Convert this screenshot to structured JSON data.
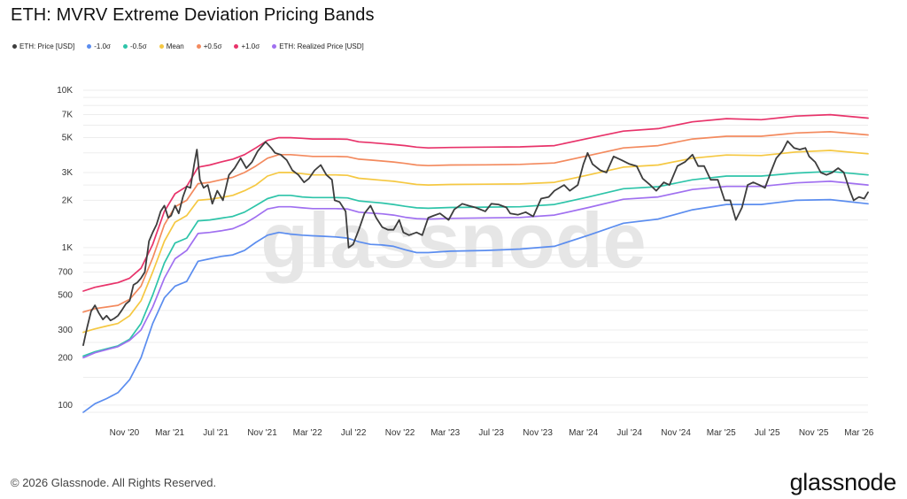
{
  "title": "ETH: MVRV Extreme Deviation Pricing Bands",
  "footer": "© 2026 Glassnode. All Rights Reserved.",
  "brand": "glassnode",
  "watermark": "glassnode",
  "chart_data": {
    "type": "line",
    "title": "ETH: MVRV Extreme Deviation Pricing Bands",
    "y_scale": "log",
    "ylim": [
      90,
      10000
    ],
    "y_ticks": [
      100,
      200,
      300,
      500,
      700,
      1000,
      2000,
      3000,
      5000,
      7000,
      10000
    ],
    "y_tick_labels": [
      "100",
      "200",
      "300",
      "500",
      "700",
      "1K",
      "2K",
      "3K",
      "5K",
      "7K",
      "10K"
    ],
    "xlim": [
      "2020-07-15",
      "2026-03-25"
    ],
    "x_ticks": [
      "2020-11-01",
      "2021-03-01",
      "2021-07-01",
      "2021-11-01",
      "2022-03-01",
      "2022-07-01",
      "2022-11-01",
      "2023-03-01",
      "2023-07-01",
      "2023-11-01",
      "2024-03-01",
      "2024-07-01",
      "2024-11-01",
      "2025-03-01",
      "2025-07-01",
      "2025-11-01",
      "2026-03-01"
    ],
    "x_tick_labels": [
      "Nov '20",
      "Mar '21",
      "Jul '21",
      "Nov '21",
      "Mar '22",
      "Jul '22",
      "Nov '22",
      "Mar '23",
      "Jul '23",
      "Nov '23",
      "Mar '24",
      "Jul '24",
      "Nov '24",
      "Mar '25",
      "Jul '25",
      "Nov '25",
      "Mar '26"
    ],
    "grid": true,
    "legend_position": "top-left",
    "series": [
      {
        "name": "ETH: Price [USD]",
        "color": "#3d3d3d",
        "x": [
          "2020-07-15",
          "2020-07-25",
          "2020-08-05",
          "2020-08-15",
          "2020-08-25",
          "2020-09-05",
          "2020-09-15",
          "2020-09-25",
          "2020-10-05",
          "2020-10-15",
          "2020-10-25",
          "2020-11-05",
          "2020-11-15",
          "2020-11-25",
          "2020-12-05",
          "2020-12-15",
          "2020-12-25",
          "2021-01-05",
          "2021-01-15",
          "2021-01-25",
          "2021-02-05",
          "2021-02-15",
          "2021-02-25",
          "2021-03-05",
          "2021-03-15",
          "2021-03-25",
          "2021-04-05",
          "2021-04-15",
          "2021-04-25",
          "2021-05-05",
          "2021-05-12",
          "2021-05-20",
          "2021-05-30",
          "2021-06-10",
          "2021-06-22",
          "2021-07-05",
          "2021-07-20",
          "2021-08-05",
          "2021-08-20",
          "2021-09-05",
          "2021-09-20",
          "2021-10-05",
          "2021-10-20",
          "2021-11-10",
          "2021-11-25",
          "2021-12-05",
          "2021-12-20",
          "2022-01-05",
          "2022-01-20",
          "2022-02-05",
          "2022-02-20",
          "2022-03-05",
          "2022-03-20",
          "2022-04-05",
          "2022-04-20",
          "2022-05-05",
          "2022-05-12",
          "2022-05-25",
          "2022-06-10",
          "2022-06-18",
          "2022-06-30",
          "2022-07-15",
          "2022-07-30",
          "2022-08-15",
          "2022-08-30",
          "2022-09-15",
          "2022-09-30",
          "2022-10-15",
          "2022-10-30",
          "2022-11-10",
          "2022-11-25",
          "2022-12-15",
          "2022-12-30",
          "2023-01-15",
          "2023-01-30",
          "2023-02-15",
          "2023-03-10",
          "2023-03-25",
          "2023-04-15",
          "2023-05-01",
          "2023-05-20",
          "2023-06-15",
          "2023-07-01",
          "2023-07-20",
          "2023-08-10",
          "2023-08-20",
          "2023-09-10",
          "2023-09-30",
          "2023-10-20",
          "2023-11-10",
          "2023-11-30",
          "2023-12-15",
          "2024-01-10",
          "2024-01-25",
          "2024-02-15",
          "2024-03-01",
          "2024-03-12",
          "2024-03-25",
          "2024-04-15",
          "2024-05-01",
          "2024-05-20",
          "2024-06-10",
          "2024-07-01",
          "2024-07-20",
          "2024-08-05",
          "2024-08-25",
          "2024-09-10",
          "2024-09-30",
          "2024-10-15",
          "2024-11-05",
          "2024-11-25",
          "2024-12-15",
          "2024-12-30",
          "2025-01-15",
          "2025-02-01",
          "2025-02-20",
          "2025-03-10",
          "2025-03-25",
          "2025-04-09",
          "2025-04-25",
          "2025-05-10",
          "2025-05-25",
          "2025-06-10",
          "2025-06-25",
          "2025-07-10",
          "2025-07-25",
          "2025-08-10",
          "2025-08-24",
          "2025-09-10",
          "2025-09-25",
          "2025-10-10",
          "2025-10-20",
          "2025-11-05",
          "2025-11-20",
          "2025-12-05",
          "2025-12-20",
          "2026-01-05",
          "2026-01-20",
          "2026-02-05",
          "2026-02-15",
          "2026-03-01",
          "2026-03-15",
          "2026-03-25"
        ],
        "values": [
          240,
          310,
          395,
          430,
          385,
          350,
          370,
          345,
          355,
          370,
          400,
          440,
          460,
          580,
          600,
          640,
          700,
          1100,
          1250,
          1400,
          1700,
          1850,
          1550,
          1600,
          1850,
          1650,
          2100,
          2450,
          2400,
          3400,
          4200,
          2700,
          2400,
          2500,
          1900,
          2300,
          2000,
          2900,
          3200,
          3700,
          3200,
          3500,
          4100,
          4700,
          4300,
          4000,
          3900,
          3600,
          3100,
          2900,
          2600,
          2750,
          3100,
          3350,
          2900,
          2700,
          2000,
          1950,
          1700,
          1000,
          1050,
          1300,
          1650,
          1850,
          1550,
          1350,
          1300,
          1300,
          1500,
          1250,
          1200,
          1250,
          1200,
          1550,
          1600,
          1650,
          1500,
          1750,
          1900,
          1850,
          1800,
          1700,
          1900,
          1880,
          1800,
          1650,
          1620,
          1680,
          1580,
          2050,
          2100,
          2300,
          2500,
          2300,
          2500,
          3400,
          4000,
          3400,
          3100,
          3000,
          3800,
          3600,
          3400,
          3300,
          2750,
          2500,
          2300,
          2600,
          2500,
          3300,
          3500,
          3900,
          3300,
          3300,
          2700,
          2700,
          2000,
          2000,
          1500,
          1800,
          2500,
          2600,
          2500,
          2400,
          3000,
          3700,
          4100,
          4750,
          4300,
          4200,
          4300,
          3800,
          3500,
          3000,
          2900,
          3000,
          3200,
          3000,
          2300,
          2000,
          2100,
          2050,
          2250
        ]
      },
      {
        "name": "-1.0σ",
        "color": "#5b8def",
        "x": [
          "2020-07-15",
          "2020-08-15",
          "2020-09-15",
          "2020-10-15",
          "2020-11-15",
          "2020-12-15",
          "2021-01-15",
          "2021-02-15",
          "2021-03-15",
          "2021-04-15",
          "2021-05-15",
          "2021-06-15",
          "2021-07-15",
          "2021-08-15",
          "2021-09-15",
          "2021-10-15",
          "2021-11-15",
          "2021-12-15",
          "2022-01-15",
          "2022-02-15",
          "2022-03-15",
          "2022-04-15",
          "2022-05-15",
          "2022-06-15",
          "2022-07-15",
          "2022-08-15",
          "2022-09-15",
          "2022-10-15",
          "2022-11-15",
          "2022-12-15",
          "2023-01-15",
          "2023-03-15",
          "2023-06-15",
          "2023-09-15",
          "2023-12-15",
          "2024-03-15",
          "2024-06-15",
          "2024-09-15",
          "2024-12-15",
          "2025-03-15",
          "2025-06-15",
          "2025-09-15",
          "2025-12-15",
          "2026-03-25"
        ],
        "values": [
          90,
          102,
          110,
          120,
          145,
          200,
          330,
          480,
          570,
          610,
          820,
          850,
          880,
          900,
          960,
          1080,
          1200,
          1250,
          1220,
          1200,
          1190,
          1180,
          1170,
          1150,
          1090,
          1050,
          1040,
          1020,
          970,
          930,
          930,
          950,
          960,
          980,
          1020,
          1200,
          1430,
          1520,
          1740,
          1880,
          1880,
          2000,
          2020,
          1900
        ]
      },
      {
        "name": "-0.5σ",
        "color": "#2ec4a9",
        "x": [
          "2020-07-15",
          "2020-08-15",
          "2020-09-15",
          "2020-10-15",
          "2020-11-15",
          "2020-12-15",
          "2021-01-15",
          "2021-02-15",
          "2021-03-15",
          "2021-04-15",
          "2021-05-15",
          "2021-06-15",
          "2021-07-15",
          "2021-08-15",
          "2021-09-15",
          "2021-10-15",
          "2021-11-15",
          "2021-12-15",
          "2022-01-15",
          "2022-02-15",
          "2022-03-15",
          "2022-04-15",
          "2022-05-15",
          "2022-06-15",
          "2022-07-15",
          "2022-08-15",
          "2022-09-15",
          "2022-10-15",
          "2022-11-15",
          "2022-12-15",
          "2023-01-15",
          "2023-03-15",
          "2023-06-15",
          "2023-09-15",
          "2023-12-15",
          "2024-03-15",
          "2024-06-15",
          "2024-09-15",
          "2024-12-15",
          "2025-03-15",
          "2025-06-15",
          "2025-09-15",
          "2025-12-15",
          "2026-03-25"
        ],
        "values": [
          205,
          218,
          228,
          238,
          262,
          330,
          500,
          800,
          1070,
          1150,
          1480,
          1500,
          1540,
          1580,
          1680,
          1850,
          2050,
          2150,
          2150,
          2100,
          2080,
          2080,
          2080,
          2070,
          1980,
          1950,
          1920,
          1880,
          1830,
          1790,
          1780,
          1800,
          1810,
          1820,
          1880,
          2100,
          2370,
          2440,
          2700,
          2850,
          2850,
          2980,
          3050,
          2900
        ]
      },
      {
        "name": "Mean",
        "color": "#f5c842",
        "x": [
          "2020-07-15",
          "2020-08-15",
          "2020-09-15",
          "2020-10-15",
          "2020-11-15",
          "2020-12-15",
          "2021-01-15",
          "2021-02-15",
          "2021-03-15",
          "2021-04-15",
          "2021-05-15",
          "2021-06-15",
          "2021-07-15",
          "2021-08-15",
          "2021-09-15",
          "2021-10-15",
          "2021-11-15",
          "2021-12-15",
          "2022-01-15",
          "2022-02-15",
          "2022-03-15",
          "2022-04-15",
          "2022-05-15",
          "2022-06-15",
          "2022-07-15",
          "2022-08-15",
          "2022-09-15",
          "2022-10-15",
          "2022-11-15",
          "2022-12-15",
          "2023-01-15",
          "2023-03-15",
          "2023-06-15",
          "2023-09-15",
          "2023-12-15",
          "2024-03-15",
          "2024-06-15",
          "2024-09-15",
          "2024-12-15",
          "2025-03-15",
          "2025-06-15",
          "2025-09-15",
          "2025-12-15",
          "2026-03-25"
        ],
        "values": [
          290,
          305,
          318,
          330,
          370,
          460,
          700,
          1100,
          1450,
          1600,
          2000,
          2030,
          2080,
          2150,
          2300,
          2500,
          2850,
          3000,
          3000,
          2950,
          2900,
          2900,
          2900,
          2880,
          2760,
          2720,
          2680,
          2640,
          2580,
          2520,
          2500,
          2520,
          2530,
          2540,
          2600,
          2900,
          3250,
          3350,
          3700,
          3880,
          3850,
          4050,
          4150,
          3950
        ]
      },
      {
        "name": "+0.5σ",
        "color": "#f38a5e",
        "x": [
          "2020-07-15",
          "2020-08-15",
          "2020-09-15",
          "2020-10-15",
          "2020-11-15",
          "2020-12-15",
          "2021-01-15",
          "2021-02-15",
          "2021-03-15",
          "2021-04-15",
          "2021-05-15",
          "2021-06-15",
          "2021-07-15",
          "2021-08-15",
          "2021-09-15",
          "2021-10-15",
          "2021-11-15",
          "2021-12-15",
          "2022-01-15",
          "2022-02-15",
          "2022-03-15",
          "2022-04-15",
          "2022-05-15",
          "2022-06-15",
          "2022-07-15",
          "2022-08-15",
          "2022-09-15",
          "2022-10-15",
          "2022-11-15",
          "2022-12-15",
          "2023-01-15",
          "2023-03-15",
          "2023-06-15",
          "2023-09-15",
          "2023-12-15",
          "2024-03-15",
          "2024-06-15",
          "2024-09-15",
          "2024-12-15",
          "2025-03-15",
          "2025-06-15",
          "2025-09-15",
          "2025-12-15",
          "2026-03-25"
        ],
        "values": [
          390,
          410,
          420,
          430,
          470,
          570,
          860,
          1400,
          1820,
          2000,
          2550,
          2600,
          2700,
          2800,
          3000,
          3300,
          3700,
          3900,
          3900,
          3850,
          3800,
          3800,
          3800,
          3780,
          3650,
          3600,
          3550,
          3500,
          3430,
          3350,
          3320,
          3350,
          3360,
          3380,
          3450,
          3850,
          4300,
          4450,
          4900,
          5100,
          5100,
          5350,
          5450,
          5200
        ]
      },
      {
        "name": "+1.0σ",
        "color": "#e8336a",
        "x": [
          "2020-07-15",
          "2020-08-15",
          "2020-09-15",
          "2020-10-15",
          "2020-11-15",
          "2020-12-15",
          "2021-01-15",
          "2021-02-15",
          "2021-03-15",
          "2021-04-15",
          "2021-05-15",
          "2021-06-15",
          "2021-07-15",
          "2021-08-15",
          "2021-09-15",
          "2021-10-15",
          "2021-11-15",
          "2021-12-15",
          "2022-01-15",
          "2022-02-15",
          "2022-03-15",
          "2022-04-15",
          "2022-05-15",
          "2022-06-15",
          "2022-07-15",
          "2022-08-15",
          "2022-09-15",
          "2022-10-15",
          "2022-11-15",
          "2022-12-15",
          "2023-01-15",
          "2023-03-15",
          "2023-06-15",
          "2023-09-15",
          "2023-12-15",
          "2024-03-15",
          "2024-06-15",
          "2024-09-15",
          "2024-12-15",
          "2025-03-15",
          "2025-06-15",
          "2025-09-15",
          "2025-12-15",
          "2026-03-25"
        ],
        "values": [
          530,
          560,
          580,
          600,
          640,
          740,
          1050,
          1700,
          2200,
          2450,
          3250,
          3350,
          3500,
          3650,
          3900,
          4300,
          4800,
          5000,
          5000,
          4950,
          4900,
          4900,
          4900,
          4880,
          4700,
          4650,
          4580,
          4520,
          4450,
          4350,
          4300,
          4330,
          4350,
          4370,
          4450,
          4950,
          5500,
          5700,
          6300,
          6600,
          6500,
          6850,
          7000,
          6650
        ]
      },
      {
        "name": "ETH: Realized Price [USD]",
        "color": "#a070f0",
        "x": [
          "2020-07-15",
          "2020-08-15",
          "2020-09-15",
          "2020-10-15",
          "2020-11-15",
          "2020-12-15",
          "2021-01-15",
          "2021-02-15",
          "2021-03-15",
          "2021-04-15",
          "2021-05-15",
          "2021-06-15",
          "2021-07-15",
          "2021-08-15",
          "2021-09-15",
          "2021-10-15",
          "2021-11-15",
          "2021-12-15",
          "2022-01-15",
          "2022-02-15",
          "2022-03-15",
          "2022-04-15",
          "2022-05-15",
          "2022-06-15",
          "2022-07-15",
          "2022-08-15",
          "2022-09-15",
          "2022-10-15",
          "2022-11-15",
          "2022-12-15",
          "2023-01-15",
          "2023-03-15",
          "2023-06-15",
          "2023-09-15",
          "2023-12-15",
          "2024-03-15",
          "2024-06-15",
          "2024-09-15",
          "2024-12-15",
          "2025-03-15",
          "2025-06-15",
          "2025-09-15",
          "2025-12-15",
          "2026-03-25"
        ],
        "values": [
          200,
          215,
          225,
          235,
          258,
          300,
          420,
          640,
          850,
          960,
          1230,
          1250,
          1280,
          1320,
          1420,
          1570,
          1760,
          1820,
          1820,
          1790,
          1770,
          1770,
          1770,
          1760,
          1680,
          1660,
          1640,
          1610,
          1560,
          1530,
          1520,
          1535,
          1545,
          1555,
          1610,
          1800,
          2030,
          2100,
          2340,
          2450,
          2450,
          2580,
          2640,
          2500
        ]
      }
    ]
  }
}
